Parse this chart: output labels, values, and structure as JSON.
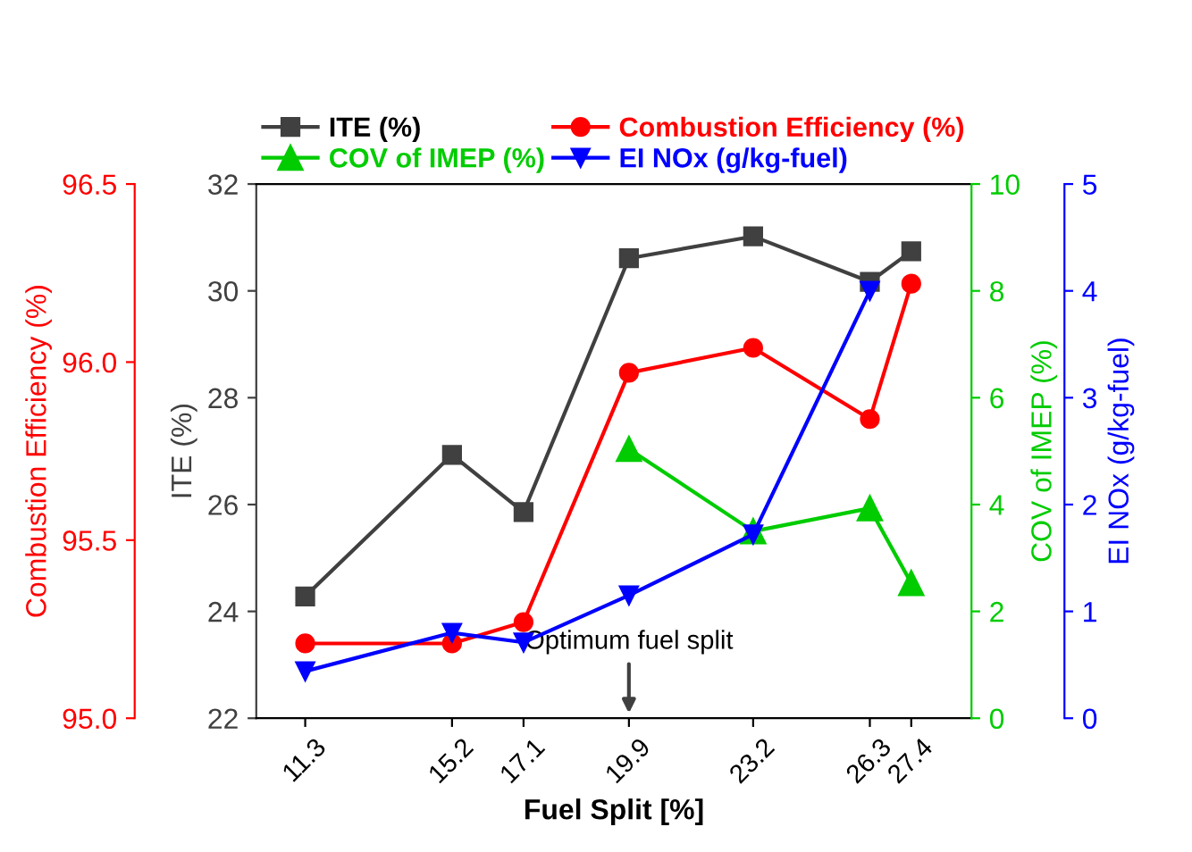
{
  "chart_data": [
    {
      "type": "line",
      "xlabel": "Fuel Split [%]",
      "ylabel": "ITE (%)",
      "y2label": "COV of IMEP (%)",
      "x": [
        11.3,
        15.2,
        17.1,
        19.9,
        23.2,
        26.3,
        27.4
      ],
      "xlim": [
        10,
        29
      ],
      "xticks": [
        11.3,
        15.2,
        17.1,
        19.9,
        23.2,
        26.3,
        27.4
      ],
      "ylim": [
        22,
        32
      ],
      "yticks": [
        22,
        24,
        26,
        28,
        30,
        32
      ],
      "y2lim": [
        0,
        10
      ],
      "y2ticks": [
        0,
        2,
        4,
        6,
        8,
        10
      ],
      "series": [
        {
          "name": "ITE (%)",
          "color": "#404040",
          "marker": "square",
          "values": [
            24.28,
            26.93,
            25.86,
            30.61,
            31.02,
            30.17,
            30.74
          ]
        },
        {
          "name": "COV of IMEP (%)",
          "color": "#00cc00",
          "marker": "triangle",
          "axis": "y2",
          "values": [
            null,
            null,
            null,
            5.04,
            3.5,
            3.93,
            2.53
          ]
        }
      ],
      "annotations": [
        "Optimum fuel split"
      ],
      "legend": "top",
      "grid": false,
      "line_style": "solid"
    },
    {
      "type": "line",
      "ylabel": "Combustion Efficiency (%)",
      "y2label": "EI NOx (g/kg-fuel)",
      "x": [
        11.3,
        15.2,
        17.1,
        19.9,
        23.2,
        26.3,
        27.4
      ],
      "xlim": [
        10,
        29
      ],
      "xticks": [
        11.3,
        15.2,
        17.1,
        19.9,
        23.2,
        26.3,
        27.4
      ],
      "tick_labels": "y",
      "ylim": [
        95.0,
        96.5
      ],
      "yticks": [
        {
          "value": 95.0,
          "label": "95.0"
        },
        95.5,
        {
          "value": 96.0,
          "label": "96.0"
        },
        96.5
      ],
      "y2lim": [
        0,
        5
      ],
      "y2ticks": [
        0,
        1,
        2,
        3,
        4,
        5
      ],
      "series": [
        {
          "name": "Combustion Efficiency (%)",
          "color": "#ff0000",
          "marker": "circle",
          "values": [
            95.21,
            95.21,
            95.27,
            95.97,
            96.04,
            95.84,
            96.22
          ]
        },
        {
          "name": "EI NOx (g/kg-fuel)",
          "color": "#0000ff",
          "marker": "triangle_down",
          "axis": "y2",
          "values": [
            0.44,
            0.8,
            0.71,
            1.15,
            1.72,
            4.0,
            null
          ]
        }
      ],
      "legend": "top",
      "grid": false,
      "line_style": "solid"
    }
  ]
}
